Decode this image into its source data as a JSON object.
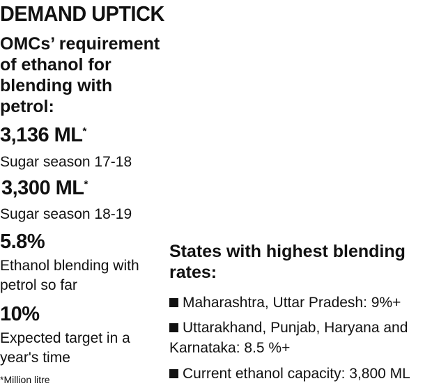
{
  "title": "DEMAND UPTICK",
  "subtitle": "OMCs’ requirement of ethanol for blending with petrol:",
  "stats": [
    {
      "value": "3,136 ML",
      "mark": "*",
      "label": "Sugar season 17-18"
    },
    {
      "value": "3,300 ML",
      "mark": "*",
      "label": "Sugar season 18-19"
    },
    {
      "value": "5.8%",
      "mark": "",
      "label": "Ethanol blending with petrol so far"
    },
    {
      "value": "10%",
      "mark": "",
      "label": "Expected target in a year's time"
    }
  ],
  "footnote": "*Million litre",
  "states": {
    "title": "States with highest blending rates:",
    "items": [
      "Maharashtra, Uttar Pradesh: 9%+",
      "Uttarakhand, Punjab, Haryana and Karnataka: 8.5 %+",
      "Current ethanol capacity: 3,800 ML"
    ]
  },
  "bullet_color": "#111111"
}
